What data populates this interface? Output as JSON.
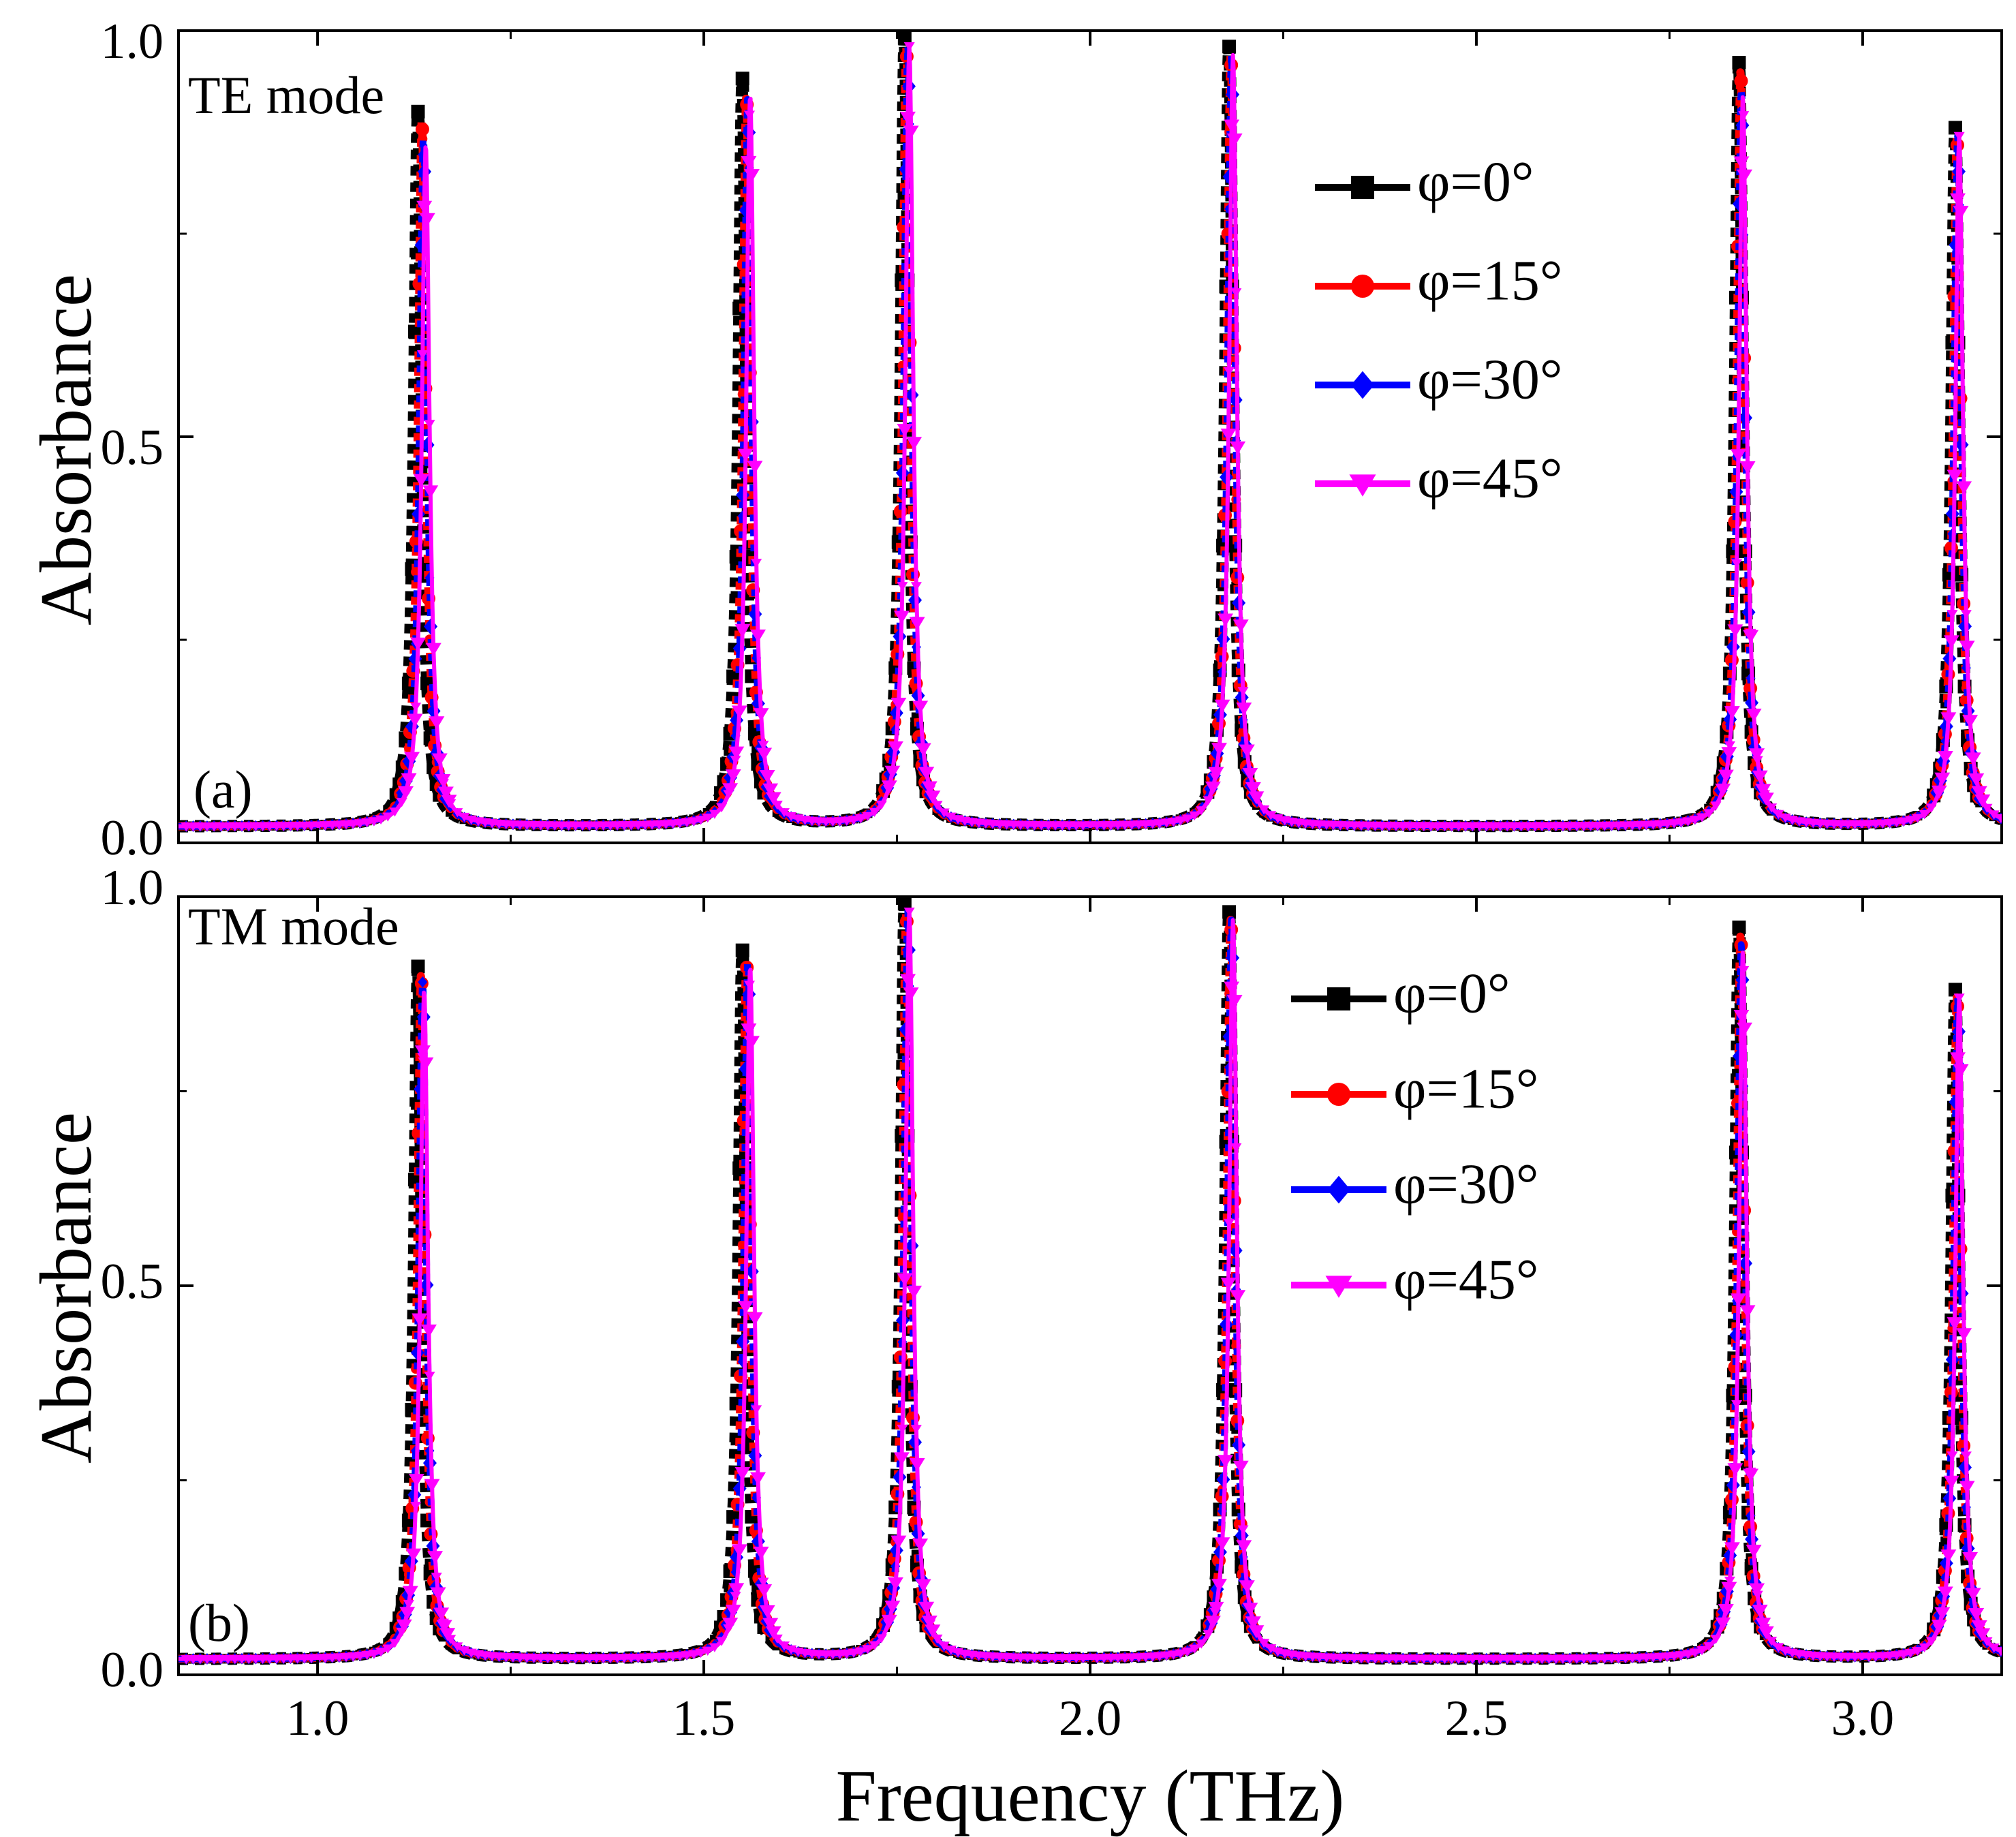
{
  "chart_data": [
    {
      "type": "line",
      "panel_label": "(a)",
      "mode_label": "TE mode",
      "ylabel": "Absorbance",
      "xlabel": "",
      "xlim": [
        0.82,
        3.18
      ],
      "ylim": [
        0.0,
        1.0
      ],
      "yticks": [
        "0.0",
        "0.5",
        "1.0"
      ],
      "xticks": [],
      "legend_position": "top-right",
      "baseline": 0.02,
      "peak_halfwidth_thz": 0.012,
      "series": [
        {
          "name": "φ=0°",
          "color": "#000000",
          "marker": "square",
          "peaks": [
            {
              "x": 1.13,
              "y": 0.9
            },
            {
              "x": 1.55,
              "y": 0.94
            },
            {
              "x": 1.76,
              "y": 0.99
            },
            {
              "x": 2.18,
              "y": 0.98
            },
            {
              "x": 2.84,
              "y": 0.96
            },
            {
              "x": 3.12,
              "y": 0.88
            }
          ]
        },
        {
          "name": "φ=15°",
          "color": "#ff0000",
          "marker": "circle",
          "peaks": [
            {
              "x": 1.135,
              "y": 0.89
            },
            {
              "x": 1.555,
              "y": 0.92
            },
            {
              "x": 1.762,
              "y": 0.98
            },
            {
              "x": 2.182,
              "y": 0.97
            },
            {
              "x": 2.842,
              "y": 0.95
            },
            {
              "x": 3.122,
              "y": 0.87
            }
          ]
        },
        {
          "name": "φ=30°",
          "color": "#0000ff",
          "marker": "diamond",
          "peaks": [
            {
              "x": 1.137,
              "y": 0.87
            },
            {
              "x": 1.557,
              "y": 0.92
            },
            {
              "x": 1.764,
              "y": 0.98
            },
            {
              "x": 2.183,
              "y": 0.97
            },
            {
              "x": 2.843,
              "y": 0.93
            },
            {
              "x": 3.123,
              "y": 0.87
            }
          ]
        },
        {
          "name": "φ=45°",
          "color": "#ff00ff",
          "marker": "triangle-down",
          "peaks": [
            {
              "x": 1.14,
              "y": 0.86
            },
            {
              "x": 1.56,
              "y": 0.92
            },
            {
              "x": 1.766,
              "y": 0.98
            },
            {
              "x": 2.185,
              "y": 0.97
            },
            {
              "x": 2.845,
              "y": 0.92
            },
            {
              "x": 3.125,
              "y": 0.87
            }
          ]
        }
      ]
    },
    {
      "type": "line",
      "panel_label": "(b)",
      "mode_label": "TM mode",
      "ylabel": "Absorbance",
      "xlabel": "Frequency (THz)",
      "xlim": [
        0.82,
        3.18
      ],
      "ylim": [
        0.0,
        1.0
      ],
      "yticks": [
        "0.0",
        "0.5",
        "1.0"
      ],
      "xticks": [
        "1.0",
        "1.5",
        "2.0",
        "2.5",
        "3.0"
      ],
      "legend_position": "top-right",
      "baseline": 0.02,
      "peak_halfwidth_thz": 0.012,
      "series": [
        {
          "name": "φ=0°",
          "color": "#000000",
          "marker": "square",
          "peaks": [
            {
              "x": 1.13,
              "y": 0.91
            },
            {
              "x": 1.55,
              "y": 0.93
            },
            {
              "x": 1.76,
              "y": 0.99
            },
            {
              "x": 2.18,
              "y": 0.98
            },
            {
              "x": 2.84,
              "y": 0.96
            },
            {
              "x": 3.12,
              "y": 0.88
            }
          ]
        },
        {
          "name": "φ=15°",
          "color": "#ff0000",
          "marker": "circle",
          "peaks": [
            {
              "x": 1.134,
              "y": 0.9
            },
            {
              "x": 1.555,
              "y": 0.92
            },
            {
              "x": 1.762,
              "y": 0.98
            },
            {
              "x": 2.182,
              "y": 0.97
            },
            {
              "x": 2.842,
              "y": 0.95
            },
            {
              "x": 3.122,
              "y": 0.87
            }
          ]
        },
        {
          "name": "φ=30°",
          "color": "#0000ff",
          "marker": "diamond",
          "peaks": [
            {
              "x": 1.136,
              "y": 0.89
            },
            {
              "x": 1.557,
              "y": 0.92
            },
            {
              "x": 1.764,
              "y": 0.98
            },
            {
              "x": 2.183,
              "y": 0.97
            },
            {
              "x": 2.843,
              "y": 0.94
            },
            {
              "x": 3.123,
              "y": 0.87
            }
          ]
        },
        {
          "name": "φ=45°",
          "color": "#ff00ff",
          "marker": "triangle-down",
          "peaks": [
            {
              "x": 1.138,
              "y": 0.88
            },
            {
              "x": 1.56,
              "y": 0.91
            },
            {
              "x": 1.766,
              "y": 0.98
            },
            {
              "x": 2.185,
              "y": 0.97
            },
            {
              "x": 2.845,
              "y": 0.93
            },
            {
              "x": 3.125,
              "y": 0.87
            }
          ]
        }
      ]
    }
  ]
}
